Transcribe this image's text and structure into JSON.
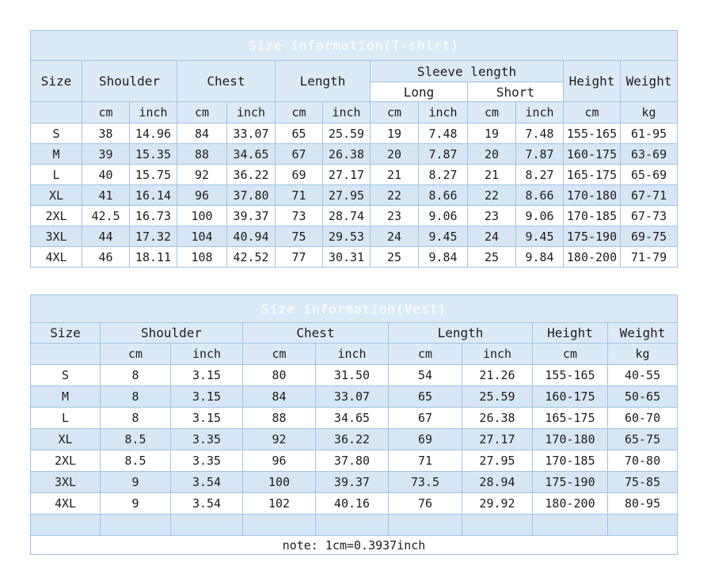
{
  "colors": {
    "title_bar": "#5093D6",
    "header_bg": "#DCEAF7",
    "stripe_bg": "#D6E6F4",
    "border": "#9DC3E6",
    "title_text": "#FFFFFF",
    "cell_text": "#1C1C1C"
  },
  "tshirt_table": {
    "title": "Size information(T-shirt)",
    "headers": {
      "size": "Size",
      "shoulder": "Shoulder",
      "chest": "Chest",
      "length": "Length",
      "sleeve": "Sleeve length",
      "sleeve_long": "Long",
      "sleeve_short": "Short",
      "height": "Height",
      "weight": "Weight"
    },
    "unit_row": [
      "",
      "cm",
      "inch",
      "cm",
      "inch",
      "cm",
      "inch",
      "cm",
      "inch",
      "cm",
      "inch",
      "cm",
      "kg"
    ],
    "rows": [
      [
        "S",
        "38",
        "14.96",
        "84",
        "33.07",
        "65",
        "25.59",
        "19",
        "7.48",
        "19",
        "7.48",
        "155-165",
        "61-95"
      ],
      [
        "M",
        "39",
        "15.35",
        "88",
        "34.65",
        "67",
        "26.38",
        "20",
        "7.87",
        "20",
        "7.87",
        "160-175",
        "63-69"
      ],
      [
        "L",
        "40",
        "15.75",
        "92",
        "36.22",
        "69",
        "27.17",
        "21",
        "8.27",
        "21",
        "8.27",
        "165-175",
        "65-69"
      ],
      [
        "XL",
        "41",
        "16.14",
        "96",
        "37.80",
        "71",
        "27.95",
        "22",
        "8.66",
        "22",
        "8.66",
        "170-180",
        "67-71"
      ],
      [
        "2XL",
        "42.5",
        "16.73",
        "100",
        "39.37",
        "73",
        "28.74",
        "23",
        "9.06",
        "23",
        "9.06",
        "170-185",
        "67-73"
      ],
      [
        "3XL",
        "44",
        "17.32",
        "104",
        "40.94",
        "75",
        "29.53",
        "24",
        "9.45",
        "24",
        "9.45",
        "175-190",
        "69-75"
      ],
      [
        "4XL",
        "46",
        "18.11",
        "108",
        "42.52",
        "77",
        "30.31",
        "25",
        "9.84",
        "25",
        "9.84",
        "180-200",
        "71-79"
      ]
    ]
  },
  "vest_table": {
    "title": "Size information(Vest)",
    "headers": {
      "size": "Size",
      "shoulder": "Shoulder",
      "chest": "Chest",
      "length": "Length",
      "height": "Height",
      "weight": "Weight"
    },
    "unit_row": [
      "",
      "cm",
      "inch",
      "cm",
      "inch",
      "cm",
      "inch",
      "cm",
      "kg"
    ],
    "rows": [
      [
        "S",
        "8",
        "3.15",
        "80",
        "31.50",
        "54",
        "21.26",
        "155-165",
        "40-55"
      ],
      [
        "M",
        "8",
        "3.15",
        "84",
        "33.07",
        "65",
        "25.59",
        "160-175",
        "50-65"
      ],
      [
        "L",
        "8",
        "3.15",
        "88",
        "34.65",
        "67",
        "26.38",
        "165-175",
        "60-70"
      ],
      [
        "XL",
        "8.5",
        "3.35",
        "92",
        "36.22",
        "69",
        "27.17",
        "170-180",
        "65-75"
      ],
      [
        "2XL",
        "8.5",
        "3.35",
        "96",
        "37.80",
        "71",
        "27.95",
        "170-185",
        "70-80"
      ],
      [
        "3XL",
        "9",
        "3.54",
        "100",
        "39.37",
        "73.5",
        "28.94",
        "175-190",
        "75-85"
      ],
      [
        "4XL",
        "9",
        "3.54",
        "102",
        "40.16",
        "76",
        "29.92",
        "180-200",
        "80-95"
      ],
      [
        "",
        "",
        "",
        "",
        "",
        "",
        "",
        "",
        ""
      ]
    ],
    "note": "note: 1cm=0.3937inch"
  }
}
